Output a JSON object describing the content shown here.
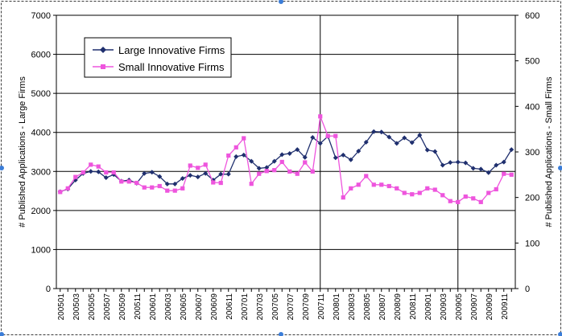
{
  "chart_data": {
    "type": "line",
    "categories": [
      "200501",
      "200502",
      "200503",
      "200504",
      "200505",
      "200506",
      "200507",
      "200508",
      "200509",
      "200510",
      "200511",
      "200512",
      "200601",
      "200602",
      "200603",
      "200604",
      "200605",
      "200606",
      "200607",
      "200608",
      "200609",
      "200610",
      "200611",
      "200612",
      "200701",
      "200702",
      "200703",
      "200704",
      "200705",
      "200706",
      "200707",
      "200708",
      "200709",
      "200710",
      "200711",
      "200712",
      "200801",
      "200802",
      "200803",
      "200804",
      "200805",
      "200806",
      "200807",
      "200808",
      "200809",
      "200810",
      "200811",
      "200812",
      "200901",
      "200902",
      "200903",
      "200904",
      "200905",
      "200906",
      "200907",
      "200908",
      "200909",
      "200910",
      "200911",
      "200912"
    ],
    "x_tick_labels": [
      "200501",
      "200503",
      "200505",
      "200507",
      "200509",
      "200511",
      "200601",
      "200603",
      "200605",
      "200607",
      "200609",
      "200611",
      "200701",
      "200703",
      "200705",
      "200707",
      "200709",
      "200711",
      "200801",
      "200803",
      "200805",
      "200807",
      "200809",
      "200811",
      "200901",
      "200903",
      "200905",
      "200907",
      "200909",
      "200911"
    ],
    "series": [
      {
        "name": "Large Innovative Firms",
        "axis": "left",
        "color": "#1f2f6e",
        "marker": "diamond",
        "values": [
          2480,
          2550,
          2780,
          2950,
          3000,
          2990,
          2840,
          2920,
          2750,
          2780,
          2700,
          2950,
          2980,
          2870,
          2680,
          2680,
          2820,
          2900,
          2860,
          2950,
          2780,
          2930,
          2930,
          3380,
          3420,
          3260,
          3080,
          3100,
          3260,
          3430,
          3460,
          3560,
          3360,
          3870,
          3720,
          3900,
          3350,
          3420,
          3300,
          3520,
          3750,
          4020,
          4010,
          3880,
          3720,
          3860,
          3740,
          3930,
          3550,
          3510,
          3160,
          3230,
          3240,
          3220,
          3080,
          3060,
          2970,
          3160,
          3240,
          3560
        ]
      },
      {
        "name": "Small Innovative Firms",
        "axis": "right",
        "color": "#ee55dd",
        "marker": "square",
        "values": [
          212,
          220,
          245,
          255,
          272,
          268,
          255,
          255,
          235,
          235,
          232,
          222,
          222,
          225,
          215,
          215,
          220,
          270,
          265,
          272,
          233,
          232,
          292,
          310,
          330,
          230,
          252,
          258,
          260,
          278,
          257,
          252,
          277,
          257,
          378,
          335,
          335,
          200,
          220,
          228,
          247,
          228,
          228,
          225,
          220,
          210,
          207,
          210,
          220,
          217,
          205,
          192,
          190,
          202,
          198,
          190,
          210,
          218,
          252,
          250
        ]
      }
    ],
    "y_left": {
      "label": "# Published Applications - Large Firms",
      "range": [
        0,
        7000
      ],
      "ticks": [
        0,
        1000,
        2000,
        3000,
        4000,
        5000,
        6000,
        7000
      ]
    },
    "y_right": {
      "label": "# Published Applications - Small Firms",
      "range": [
        0,
        600
      ],
      "ticks": [
        0,
        100,
        200,
        300,
        400,
        500,
        600
      ]
    },
    "vertical_lines_at": [
      "200711",
      "200905"
    ],
    "grid": true,
    "legend_position": "top-left"
  }
}
